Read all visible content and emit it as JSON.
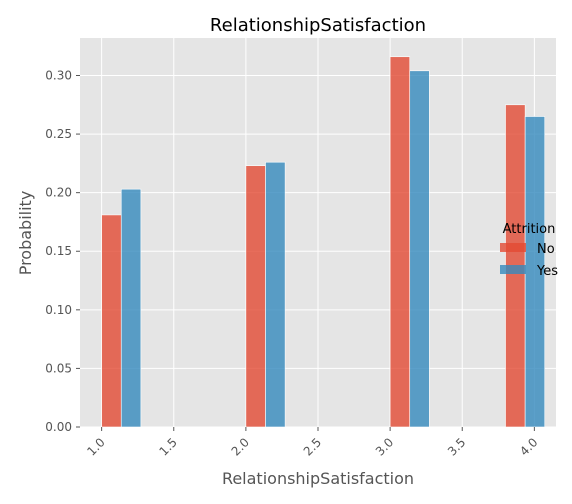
{
  "chart_data": {
    "type": "bar",
    "title": "RelationshipSatisfaction",
    "xlabel": "RelationshipSatisfaction",
    "ylabel": "Probability",
    "xlim": [
      0.85,
      4.15
    ],
    "ylim": [
      0,
      0.332
    ],
    "xticks": [
      1.0,
      1.5,
      2.0,
      2.5,
      3.0,
      3.5,
      4.0
    ],
    "xtick_labels": [
      "1.0",
      "1.5",
      "2.0",
      "2.5",
      "3.0",
      "3.5",
      "4.0"
    ],
    "yticks": [
      0.0,
      0.05,
      0.1,
      0.15,
      0.2,
      0.25,
      0.3
    ],
    "ytick_labels": [
      "0.00",
      "0.05",
      "0.10",
      "0.15",
      "0.20",
      "0.25",
      "0.30"
    ],
    "grid": true,
    "legend": {
      "title": "Attrition",
      "position": "center-right"
    },
    "bin_width": 0.136,
    "series": [
      {
        "name": "No",
        "color": "#E24A33",
        "x": [
          1.0,
          2.0,
          3.0,
          3.8
        ],
        "values": [
          0.181,
          0.223,
          0.316,
          0.275
        ]
      },
      {
        "name": "Yes",
        "color": "#348ABD",
        "x": [
          1.136,
          2.136,
          3.136,
          3.936
        ],
        "values": [
          0.203,
          0.226,
          0.304,
          0.265
        ]
      }
    ],
    "colors": {
      "plot_bg": "#E5E5E5",
      "grid": "#FFFFFF",
      "text": "#555555",
      "title": "#000000"
    }
  }
}
